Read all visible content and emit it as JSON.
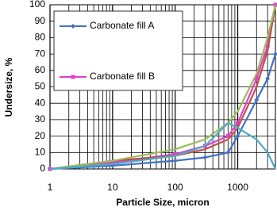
{
  "chart_data": {
    "type": "line",
    "x_label": "Particle Size, micron",
    "y_label": "Undersize, %",
    "x": [
      1,
      10,
      100,
      300,
      700,
      1000,
      2000,
      3000,
      4000
    ],
    "series": [
      {
        "name": "Carbonate fill A",
        "color": "#4472c4",
        "marker": "diamond",
        "values": [
          0,
          2,
          5,
          7,
          10,
          20,
          42,
          55,
          70
        ]
      },
      {
        "name": "Carbonate fill B",
        "color": "#e040c8",
        "marker": "square",
        "values": [
          0,
          4,
          9,
          14,
          20,
          28,
          55,
          75,
          100
        ]
      },
      {
        "color": "#c0504d",
        "values": [
          0,
          5,
          8,
          12,
          18,
          25,
          50,
          72,
          100
        ]
      },
      {
        "color": "#9bbb59",
        "values": [
          0,
          5,
          12,
          18,
          28,
          35,
          58,
          80,
          100
        ]
      },
      {
        "color": "#4bacc6",
        "values": [
          0,
          3,
          8,
          14,
          28,
          25,
          18,
          10,
          0
        ]
      }
    ],
    "xscale": "log",
    "xlim": [
      1,
      4000
    ],
    "xticks": [
      1,
      10,
      100,
      1000
    ],
    "ylim": [
      0,
      100
    ],
    "yticks": [
      0,
      10,
      20,
      30,
      40,
      50,
      60,
      70,
      80,
      90,
      100
    ],
    "grid": true
  }
}
